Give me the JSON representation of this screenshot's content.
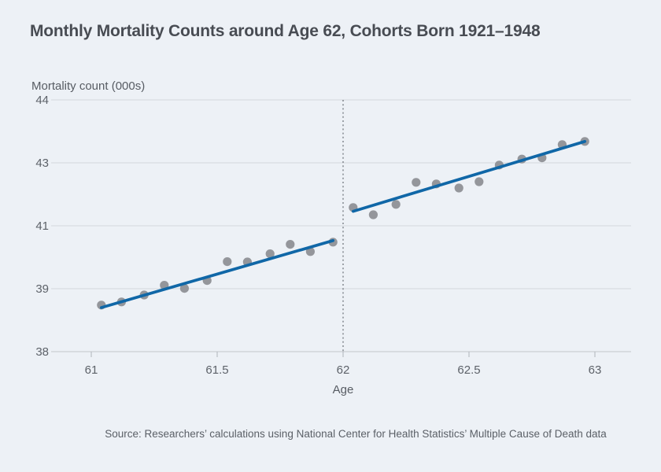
{
  "page": {
    "title": "Monthly Mortality Counts around Age 62, Cohorts Born 1921–1948",
    "source": "Source: Researchers’ calculations using National Center for Health Statistics’ Multiple Cause of Death data"
  },
  "chart_data": {
    "type": "scatter",
    "title": "Monthly Mortality Counts around Age 62, Cohorts Born 1921–1948",
    "xlabel": "Age",
    "ylabel": "Mortality count (000s)",
    "x_tick_values": [
      61,
      61.5,
      62,
      62.5,
      63
    ],
    "x_tick_labels": [
      "61",
      "61.5",
      "62",
      "62.5",
      "63"
    ],
    "y_tick_values": [
      44,
      43,
      41,
      39,
      38
    ],
    "y_tick_labels": [
      "44",
      "43",
      "41",
      "39",
      "38"
    ],
    "y_axis_note": "gridlines evenly spaced although tick values increment unevenly (1,2,2,1)",
    "xlim": [
      60.84,
      63.14
    ],
    "grid": true,
    "legend": "none",
    "vline_x": 62,
    "series": [
      {
        "name": "monthly-mortality-pre-62",
        "kind": "scatter",
        "x": [
          61.04,
          61.12,
          61.21,
          61.29,
          61.37,
          61.46,
          61.54,
          61.62,
          61.71,
          61.79,
          61.87,
          61.96
        ],
        "y": [
          38.74,
          38.79,
          38.9,
          39.11,
          39.01,
          39.26,
          39.86,
          39.85,
          40.11,
          40.41,
          40.18,
          40.48
        ]
      },
      {
        "name": "monthly-mortality-post-62",
        "kind": "scatter",
        "x": [
          62.04,
          62.12,
          62.21,
          62.29,
          62.37,
          62.46,
          62.54,
          62.62,
          62.71,
          62.79,
          62.87,
          62.96
        ],
        "y": [
          41.58,
          41.35,
          41.68,
          42.38,
          42.33,
          42.2,
          42.4,
          42.93,
          43.06,
          43.08,
          43.29,
          43.34
        ]
      },
      {
        "name": "trend-pre-62",
        "kind": "line",
        "x": [
          61.04,
          61.96
        ],
        "y": [
          38.7,
          40.53
        ]
      },
      {
        "name": "trend-post-62",
        "kind": "line",
        "x": [
          62.04,
          62.96
        ],
        "y": [
          41.46,
          43.34
        ]
      }
    ],
    "colors": {
      "background": "#edf1f6",
      "point": "#94969b",
      "trend_line": "#1067a7",
      "gridline": "#d3d7dc",
      "axis_line": "#c2c6cb",
      "tick_mark": "#b0b5bb",
      "dashed_vline": "#686d74",
      "title_text": "#484c53",
      "axis_text": "#575c63",
      "tick_text": "#5d6269",
      "source_text": "#5b6067"
    }
  }
}
